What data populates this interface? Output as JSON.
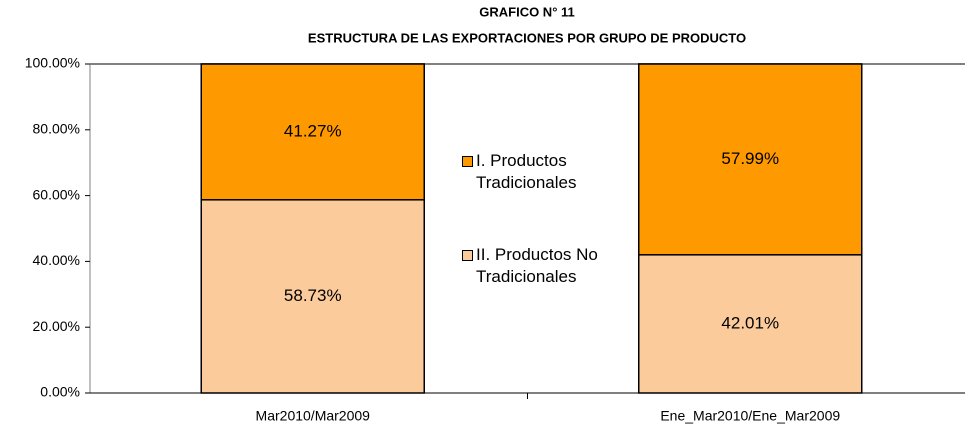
{
  "chart_data": {
    "type": "stacked_bar",
    "title": "GRAFICO N°  11",
    "subtitle": "ESTRUCTURA DE LAS EXPORTACIONES POR GRUPO DE PRODUCTO",
    "categories": [
      "Mar2010/Mar2009",
      "Ene_Mar2010/Ene_Mar2009"
    ],
    "series": [
      {
        "name": "I. Productos Tradicionales",
        "color": "#ff9900",
        "values": [
          41.27,
          57.99
        ],
        "value_labels": [
          "41.27%",
          "57.99%"
        ]
      },
      {
        "name": "II. Productos No Tradicionales",
        "color": "#fccb9b",
        "values": [
          58.73,
          42.01
        ],
        "value_labels": [
          "58.73%",
          "42.01%"
        ]
      }
    ],
    "ylim": [
      0,
      100
    ],
    "yticks": [
      {
        "value": 0,
        "label": "0.00%"
      },
      {
        "value": 20,
        "label": "20.00%"
      },
      {
        "value": 40,
        "label": "40.00%"
      },
      {
        "value": 60,
        "label": "60.00%"
      },
      {
        "value": 80,
        "label": "80.00%"
      },
      {
        "value": 100,
        "label": "100.00%"
      }
    ]
  }
}
